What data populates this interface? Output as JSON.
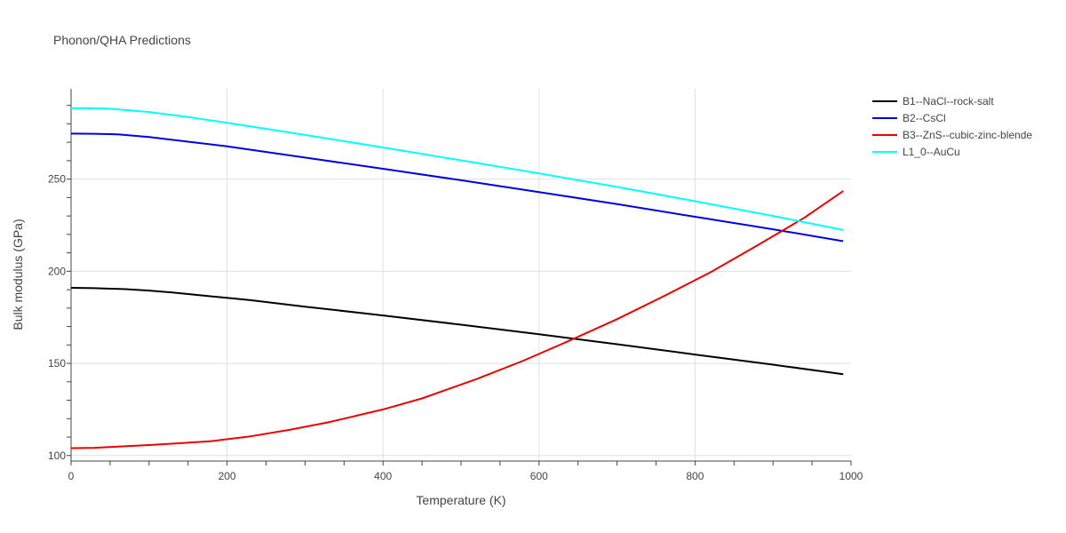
{
  "chart_data": {
    "type": "line",
    "title": "Phonon/QHA Predictions",
    "xlabel": "Temperature (K)",
    "ylabel": "Bulk modulus (GPa)",
    "xlim": [
      0,
      1000
    ],
    "ylim": [
      97,
      299
    ],
    "xticks": [
      0,
      200,
      400,
      600,
      800,
      1000
    ],
    "yticks": [
      100,
      150,
      200,
      250
    ],
    "grid": true,
    "legend_position": "right",
    "series": [
      {
        "name": "B1--NaCl--rock-salt",
        "color": "#000000",
        "x": [
          0,
          30,
          70,
          100,
          130,
          180,
          230,
          300,
          400,
          500,
          600,
          700,
          800,
          900,
          990
        ],
        "y": [
          191,
          190.8,
          190.3,
          189.5,
          188.5,
          186.4,
          184.3,
          180.8,
          176,
          171,
          165.8,
          160.4,
          154.8,
          149.3,
          144.1
        ]
      },
      {
        "name": "B2--CsCl",
        "color": "#0000dd",
        "x": [
          0,
          30,
          60,
          100,
          150,
          200,
          300,
          400,
          500,
          600,
          700,
          800,
          900,
          990
        ],
        "y": [
          274.7,
          274.6,
          274.3,
          272.8,
          270.3,
          267.8,
          261.7,
          255.6,
          249.4,
          243,
          236.4,
          229.6,
          222.8,
          216.3
        ]
      },
      {
        "name": "B3--ZnS--cubic-zinc-blende",
        "color": "#ee0000",
        "x": [
          0,
          30,
          60,
          100,
          140,
          180,
          230,
          280,
          330,
          400,
          450,
          520,
          580,
          640,
          700,
          760,
          820,
          880,
          940,
          990
        ],
        "y": [
          104,
          104.2,
          104.8,
          105.7,
          106.7,
          107.8,
          110.4,
          113.9,
          118,
          125,
          131,
          141.5,
          151.5,
          162.5,
          174,
          186.5,
          199.5,
          214,
          229,
          243.5
        ]
      },
      {
        "name": "L1_0--AuCu",
        "color": "#00ffff",
        "x": [
          0,
          20,
          50,
          100,
          150,
          200,
          300,
          400,
          500,
          600,
          700,
          800,
          900,
          990
        ],
        "y": [
          288.5,
          288.5,
          288.2,
          286.4,
          283.7,
          280.6,
          274,
          267.2,
          260.2,
          253.1,
          245.8,
          238,
          230,
          222.4
        ]
      }
    ]
  }
}
